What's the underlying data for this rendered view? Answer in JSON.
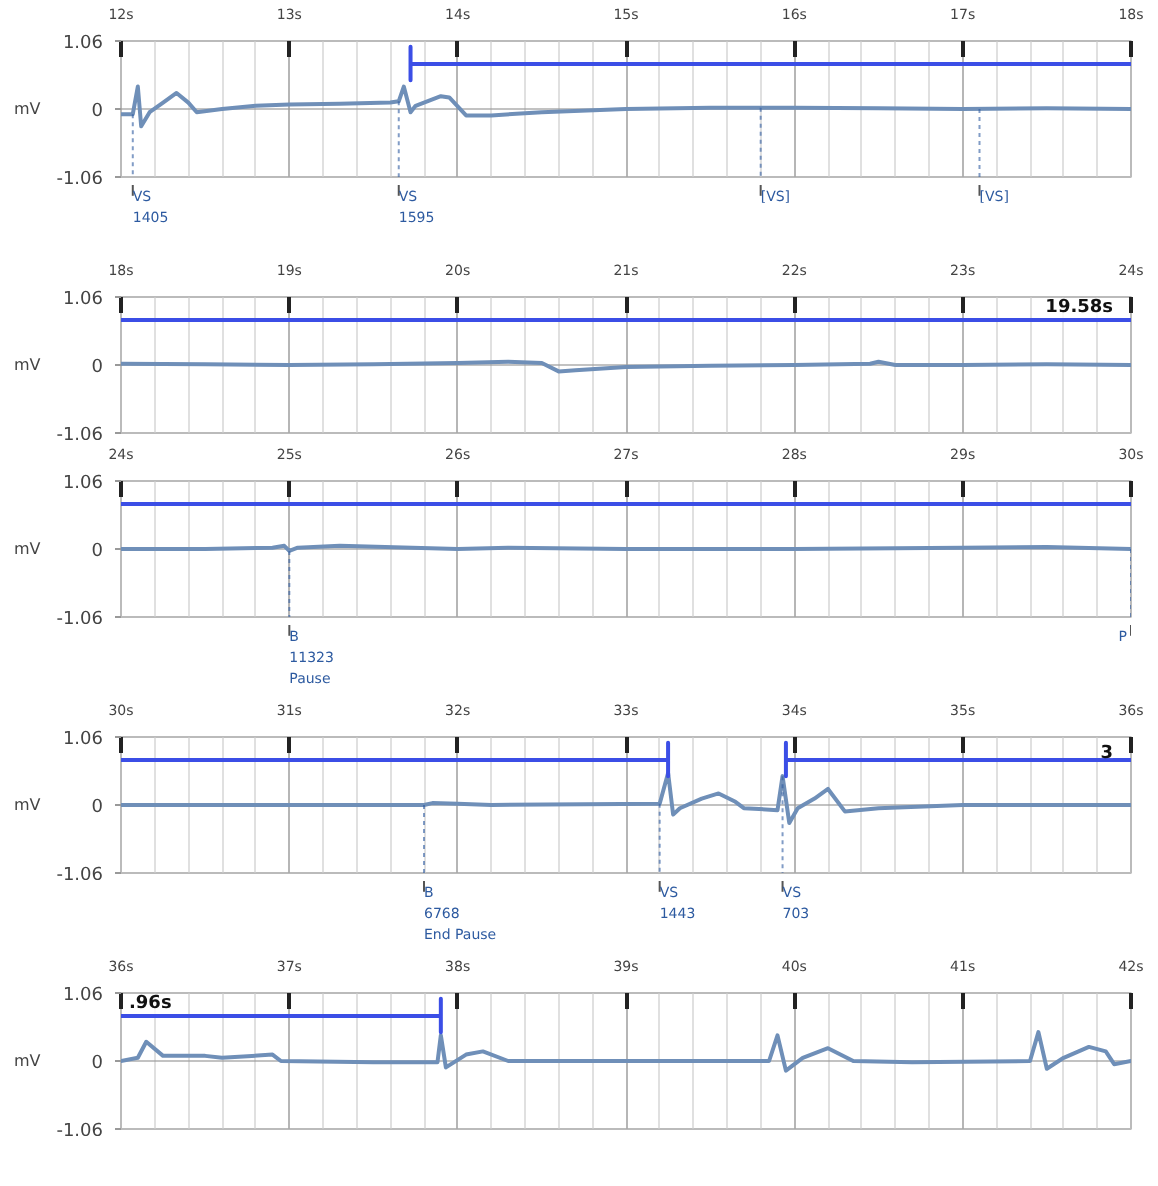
{
  "chart_data": [
    {
      "type": "line",
      "ylabel": "mV",
      "xlim": [
        12,
        18
      ],
      "ylim": [
        -1.06,
        1.06
      ],
      "xticks": [
        {
          "value": 12,
          "label": "12s"
        },
        {
          "value": 13,
          "label": "13s"
        },
        {
          "value": 14,
          "label": "14s"
        },
        {
          "value": 15,
          "label": "15s"
        },
        {
          "value": 16,
          "label": "16s"
        },
        {
          "value": 17,
          "label": "17s"
        },
        {
          "value": 18,
          "label": "18s"
        }
      ],
      "yticks": [
        -1.06,
        0,
        1.06
      ],
      "grid": true,
      "series": [
        {
          "color": "#6f8fb8",
          "x": [
            12,
            12.07,
            12.1,
            12.12,
            12.17,
            12.25,
            12.33,
            12.4,
            12.45,
            12.6,
            12.8,
            13.0,
            13.3,
            13.6,
            13.65,
            13.68,
            13.72,
            13.75,
            13.85,
            13.9,
            13.95,
            14.05,
            14.2,
            14.5,
            15,
            15.5,
            16,
            16.5,
            17,
            17.5,
            18
          ],
          "values": [
            -0.08,
            -0.08,
            0.35,
            -0.27,
            -0.05,
            0.1,
            0.25,
            0.1,
            -0.05,
            0.0,
            0.05,
            0.07,
            0.08,
            0.1,
            0.12,
            0.35,
            -0.05,
            0.05,
            0.15,
            0.2,
            0.18,
            -0.1,
            -0.1,
            -0.05,
            0.0,
            0.02,
            0.02,
            0.01,
            0.0,
            0.01,
            0.0
          ]
        },
        {
          "color": "#3b4ee6",
          "x": [
            13.72,
            13.72,
            13.72,
            18
          ],
          "values": [
            0.97,
            0.45,
            0.7,
            0.7
          ]
        }
      ],
      "annotations": [
        {
          "text": "VS\n1405",
          "x": 12.07,
          "y": -0.08
        },
        {
          "text": "VS\n1595",
          "x": 13.65,
          "y": 0.12
        },
        {
          "text": "[VS]",
          "x": 15.8,
          "y": 0.02
        },
        {
          "text": "[VS]",
          "x": 17.1,
          "y": 0.0
        }
      ]
    },
    {
      "type": "line",
      "ylabel": "mV",
      "xlim": [
        18,
        24
      ],
      "ylim": [
        -1.06,
        1.06
      ],
      "xticks": [
        {
          "value": 18,
          "label": "18s"
        },
        {
          "value": 19,
          "label": "19s"
        },
        {
          "value": 20,
          "label": "20s"
        },
        {
          "value": 21,
          "label": "21s"
        },
        {
          "value": 22,
          "label": "22s"
        },
        {
          "value": 23,
          "label": "23s"
        },
        {
          "value": 24,
          "label": "24s"
        }
      ],
      "yticks": [
        -1.06,
        0,
        1.06
      ],
      "grid": true,
      "series": [
        {
          "color": "#6f8fb8",
          "x": [
            18,
            18.5,
            19,
            19.5,
            20,
            20.3,
            20.5,
            20.6,
            20.7,
            21,
            21.5,
            22,
            22.45,
            22.5,
            22.6,
            23,
            23.5,
            24
          ],
          "values": [
            0.02,
            0.01,
            0.0,
            0.01,
            0.03,
            0.05,
            0.03,
            -0.1,
            -0.08,
            -0.03,
            -0.01,
            0.0,
            0.02,
            0.05,
            0.0,
            0.0,
            0.01,
            0.0
          ]
        },
        {
          "color": "#3b4ee6",
          "x": [
            18,
            24
          ],
          "values": [
            0.7,
            0.7
          ]
        }
      ],
      "annotations": [
        {
          "text": "19.58s",
          "x": 24,
          "y": 0.7
        }
      ]
    },
    {
      "type": "line",
      "ylabel": "mV",
      "xlim": [
        24,
        30
      ],
      "ylim": [
        -1.06,
        1.06
      ],
      "xticks": [
        {
          "value": 24,
          "label": "24s"
        },
        {
          "value": 25,
          "label": "25s"
        },
        {
          "value": 26,
          "label": "26s"
        },
        {
          "value": 27,
          "label": "27s"
        },
        {
          "value": 28,
          "label": "28s"
        },
        {
          "value": 29,
          "label": "29s"
        },
        {
          "value": 30,
          "label": "30s"
        }
      ],
      "yticks": [
        -1.06,
        0,
        1.06
      ],
      "grid": true,
      "series": [
        {
          "color": "#6f8fb8",
          "x": [
            24,
            24.5,
            24.9,
            24.97,
            25.0,
            25.05,
            25.3,
            26,
            26.3,
            27,
            28,
            29,
            29.5,
            30
          ],
          "values": [
            0.0,
            0.0,
            0.02,
            0.05,
            -0.03,
            0.02,
            0.05,
            0.0,
            0.02,
            0.0,
            0.0,
            0.02,
            0.03,
            0.0
          ]
        },
        {
          "color": "#3b4ee6",
          "x": [
            24,
            30
          ],
          "values": [
            0.7,
            0.7
          ]
        }
      ],
      "annotations": [
        {
          "text": "B\n11323\nPause",
          "x": 25.0,
          "y": -0.03
        },
        {
          "text": "P",
          "x": 30,
          "y": 0.0
        }
      ]
    },
    {
      "type": "line",
      "ylabel": "mV",
      "xlim": [
        30,
        36
      ],
      "ylim": [
        -1.06,
        1.06
      ],
      "xticks": [
        {
          "value": 30,
          "label": "30s"
        },
        {
          "value": 31,
          "label": "31s"
        },
        {
          "value": 32,
          "label": "32s"
        },
        {
          "value": 33,
          "label": "33s"
        },
        {
          "value": 34,
          "label": "34s"
        },
        {
          "value": 35,
          "label": "35s"
        },
        {
          "value": 36,
          "label": "36s"
        }
      ],
      "yticks": [
        -1.06,
        0,
        1.06
      ],
      "grid": true,
      "series": [
        {
          "color": "#6f8fb8",
          "x": [
            30,
            31,
            31.5,
            31.8,
            31.85,
            32.0,
            32.2,
            33.2,
            33.25,
            33.28,
            33.32,
            33.45,
            33.55,
            33.65,
            33.7,
            33.9,
            33.93,
            33.97,
            34.02,
            34.12,
            34.2,
            34.3,
            34.5,
            35,
            36
          ],
          "values": [
            0.0,
            0.0,
            0.0,
            0.0,
            0.03,
            0.02,
            0.0,
            0.02,
            0.5,
            -0.15,
            -0.05,
            0.1,
            0.18,
            0.05,
            -0.05,
            -0.08,
            0.45,
            -0.28,
            -0.05,
            0.1,
            0.25,
            -0.1,
            -0.05,
            0.0,
            0.0
          ]
        },
        {
          "color": "#3b4ee6",
          "x": [
            30,
            33.25,
            33.25,
            33.25
          ],
          "values": [
            0.7,
            0.7,
            0.97,
            0.45
          ]
        },
        {
          "color": "#3b4ee6",
          "x": [
            33.95,
            33.95,
            33.95,
            36
          ],
          "values": [
            0.97,
            0.45,
            0.7,
            0.7
          ]
        }
      ],
      "annotations": [
        {
          "text": "B\n6768\nEnd Pause",
          "x": 31.8,
          "y": 0.0
        },
        {
          "text": "VS\n1443",
          "x": 33.2,
          "y": 0.02
        },
        {
          "text": "VS\n703",
          "x": 33.93,
          "y": 0.45
        },
        {
          "text": "3",
          "x": 36,
          "y": 0.7
        }
      ]
    },
    {
      "type": "line",
      "ylabel": "mV",
      "xlim": [
        36,
        42
      ],
      "ylim": [
        -1.06,
        1.06
      ],
      "xticks": [
        {
          "value": 36,
          "label": "36s"
        },
        {
          "value": 37,
          "label": "37s"
        },
        {
          "value": 38,
          "label": "38s"
        },
        {
          "value": 39,
          "label": "39s"
        },
        {
          "value": 40,
          "label": "40s"
        },
        {
          "value": 41,
          "label": "41s"
        },
        {
          "value": 42,
          "label": "42s"
        }
      ],
      "yticks": [
        -1.06,
        0,
        1.06
      ],
      "grid": true,
      "series": [
        {
          "color": "#6f8fb8",
          "x": [
            36,
            36.1,
            36.15,
            36.25,
            36.5,
            36.6,
            36.9,
            36.95,
            37.5,
            37.88,
            37.9,
            37.93,
            38.05,
            38.15,
            38.3,
            39,
            39.5,
            39.85,
            39.9,
            39.95,
            40.05,
            40.2,
            40.35,
            40.7,
            41.4,
            41.45,
            41.5,
            41.6,
            41.75,
            41.85,
            41.9,
            42
          ],
          "values": [
            0.0,
            0.05,
            0.3,
            0.08,
            0.08,
            0.05,
            0.1,
            0.0,
            -0.02,
            -0.02,
            0.4,
            -0.1,
            0.1,
            0.15,
            0.0,
            0.0,
            0.0,
            0.0,
            0.4,
            -0.15,
            0.05,
            0.2,
            0.0,
            -0.02,
            0.0,
            0.45,
            -0.12,
            0.05,
            0.22,
            0.15,
            -0.05,
            0.0
          ]
        },
        {
          "color": "#3b4ee6",
          "x": [
            36,
            37.9,
            37.9,
            37.9
          ],
          "values": [
            0.7,
            0.7,
            0.97,
            0.45
          ]
        }
      ],
      "annotations": [
        {
          "text": ".96s",
          "x": 36,
          "y": 0.7
        }
      ]
    }
  ]
}
